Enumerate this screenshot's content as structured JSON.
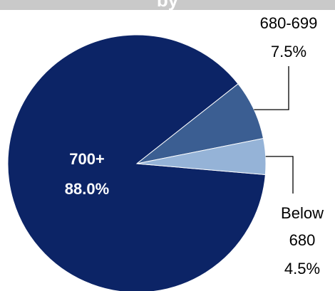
{
  "header": {
    "title_fragment": "by"
  },
  "colors": {
    "banner_bg": "#c9c9c9",
    "leader_line": "#000000",
    "label_text": "#000000",
    "inside_label_text": "#ffffff"
  },
  "chart_data": {
    "type": "pie",
    "title": "",
    "slices": [
      {
        "label": "700+",
        "value": 88.0,
        "display": "88.0%",
        "color": "#0c2466",
        "label_position": "inside"
      },
      {
        "label": "680-699",
        "value": 7.5,
        "display": "7.5%",
        "color": "#3b5e92",
        "label_position": "outside"
      },
      {
        "label": "Below 680",
        "label_lines": [
          "Below",
          "680"
        ],
        "value": 4.5,
        "display": "4.5%",
        "color": "#95b3d7",
        "label_position": "outside"
      }
    ]
  }
}
